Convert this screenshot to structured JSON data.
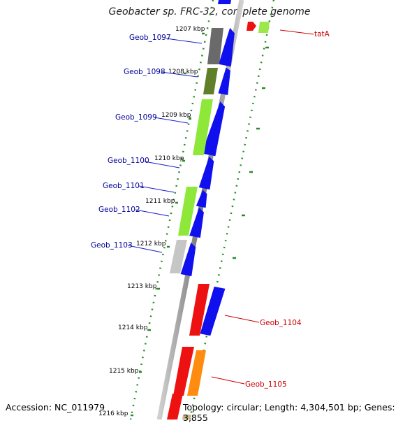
{
  "title": "Geobacter sp. FRC-32, complete genome",
  "footer": {
    "accession": "Accession: NC_011979",
    "topology": "Topology: circular; Length: 4,304,501 bp; Genes: 3,855"
  },
  "colors": {
    "forward": "#1010ee",
    "reverse_left": "#8ee83a",
    "reverse_right": "#9be84a",
    "olive": "#5f7f2a",
    "gray_dark": "#6a6a6a",
    "gray_light": "#c6c6c6",
    "red": "#ee1111",
    "orange": "#ff8c10",
    "tan": "#c8b88a",
    "backbone": "#888888",
    "ticks": "#2a8a2a",
    "label_left": "#000099",
    "label_right": "#cc0000"
  },
  "scale_labels": [
    "1207 kbp",
    "1208 kbp",
    "1209 kbp",
    "1210 kbp",
    "1211 kbp",
    "1212 kbp",
    "1213 kbp",
    "1214 kbp",
    "1215 kbp",
    "1216 kbp"
  ],
  "gene_labels_left": [
    "Geob_1097",
    "Geob_1098",
    "Geob_1099",
    "Geob_1100",
    "Geob_1101",
    "Geob_1102",
    "Geob_1103"
  ],
  "gene_labels_right": [
    "tatA",
    "Geob_1104",
    "Geob_1105"
  ]
}
